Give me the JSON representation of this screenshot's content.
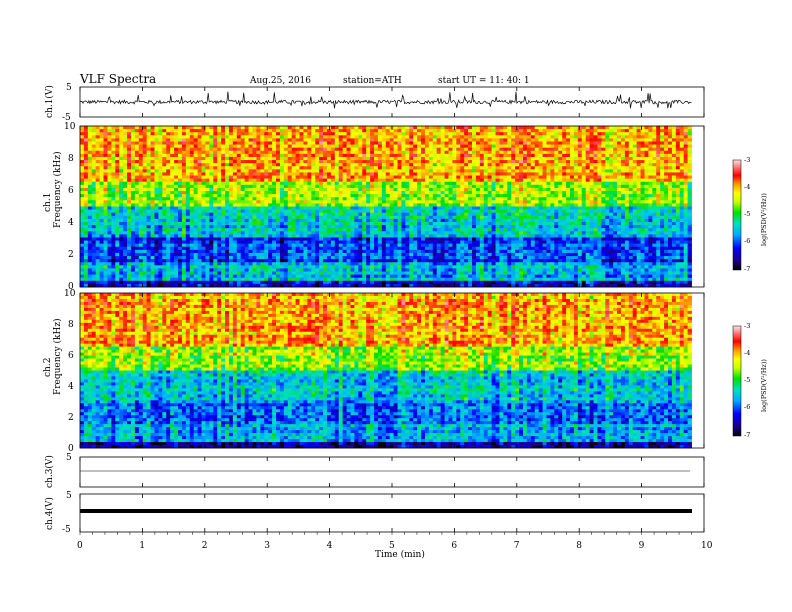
{
  "header": {
    "title": "VLF  Spectra",
    "date": "Aug.25, 2016",
    "station": "station=ATH",
    "start": "start  UT  =    11: 40: 1"
  },
  "chart_data": [
    {
      "type": "line",
      "panel": "ch1-waveform",
      "ylabel": "ch.1(V)",
      "ylim": [
        -5,
        5
      ],
      "yticks": [
        "5",
        "-5"
      ],
      "xlim": [
        0,
        10
      ],
      "description_series": "noisy waveform centered near 0 V with spikes",
      "series": [
        {
          "values_approx_range": [
            -2,
            3.5
          ]
        }
      ]
    },
    {
      "type": "heatmap",
      "panel": "ch1-spectrogram",
      "ylabel_line1": "ch.1",
      "ylabel_line2": "Frequency  (kHz)",
      "ylim": [
        0,
        10
      ],
      "yticks": [
        "10",
        "8",
        "6",
        "4",
        "2",
        "0"
      ],
      "xlim": [
        0,
        10
      ],
      "colorbar": {
        "label": "log(PSD(V²/Hz))",
        "ticks": [
          "-3",
          "-4",
          "-5",
          "-6",
          "-7"
        ],
        "range": [
          -7,
          -3
        ]
      }
    },
    {
      "type": "heatmap",
      "panel": "ch2-spectrogram",
      "ylabel_line1": "ch.2",
      "ylabel_line2": "Frequency  (kHz)",
      "ylim": [
        0,
        10
      ],
      "yticks": [
        "10",
        "8",
        "6",
        "4",
        "2",
        "0"
      ],
      "xlim": [
        0,
        10
      ],
      "colorbar": {
        "label": "log(PSD(V²/Hz))",
        "ticks": [
          "-3",
          "-4",
          "-5",
          "-6",
          "-7"
        ],
        "range": [
          -7,
          -3
        ]
      }
    },
    {
      "type": "line",
      "panel": "ch3-waveform",
      "ylabel": "ch.3(V)",
      "ylim": [
        -5,
        5
      ],
      "yticks": [
        "5"
      ],
      "xlim": [
        0,
        10
      ],
      "series": [
        {
          "constant_value": -0.5
        }
      ]
    },
    {
      "type": "line",
      "panel": "ch4-waveform",
      "ylabel": "ch.4(V)",
      "ylim": [
        -5,
        5
      ],
      "yticks": [
        "5",
        "-5"
      ],
      "xlim": [
        0,
        10
      ],
      "xlabel": "Time  (min)",
      "xticks": [
        "0",
        "1",
        "2",
        "3",
        "4",
        "5",
        "6",
        "7",
        "8",
        "9",
        "10"
      ],
      "series": [
        {
          "constant_value": 0
        }
      ]
    }
  ]
}
